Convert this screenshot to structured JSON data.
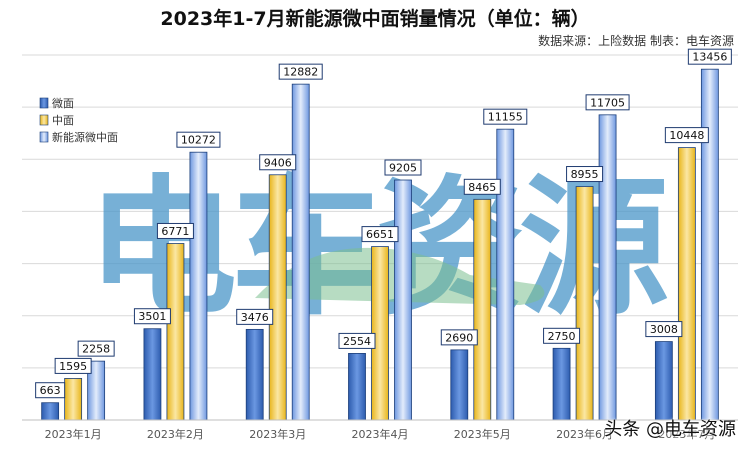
{
  "chart_data": {
    "type": "bar",
    "title": "2023年1-7月新能源微中面销量情况（单位：辆）",
    "source_note": "数据来源：上险数据 制表：电车资源",
    "categories": [
      "2023年1月",
      "2023年2月",
      "2023年3月",
      "2023年4月",
      "2023年5月",
      "2023年6月",
      "2023年7月"
    ],
    "series": [
      {
        "name": "微面",
        "color": "#3f74c8",
        "values": [
          663,
          3501,
          3476,
          2554,
          2690,
          2750,
          3008
        ]
      },
      {
        "name": "中面",
        "color": "#f2c230",
        "values": [
          1595,
          6771,
          9406,
          6651,
          8465,
          8955,
          10448
        ]
      },
      {
        "name": "新能源微中面",
        "color": "#7ea3e8",
        "values": [
          2258,
          10272,
          12882,
          9205,
          11155,
          11705,
          13456
        ]
      }
    ],
    "ylim": [
      0,
      14000
    ],
    "grid": true,
    "legend_position": "top-left"
  },
  "watermark": {
    "logo_text": "电车资源",
    "corner_text": "头条 @电车资源"
  }
}
